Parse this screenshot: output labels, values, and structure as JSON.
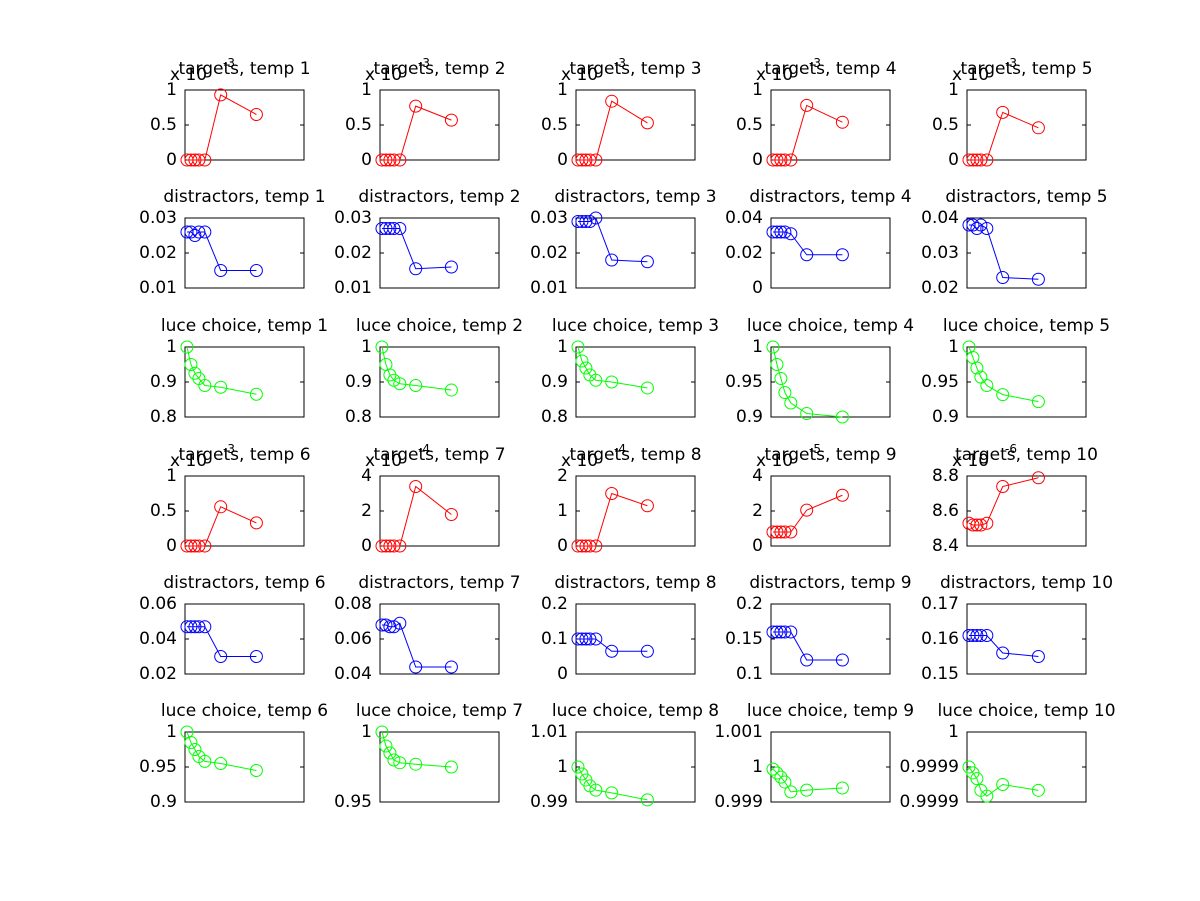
{
  "chart_data": [
    {
      "type": "line",
      "title": "targets, temp 1",
      "multiplier": {
        "base": "x 10",
        "exponent": "-3"
      },
      "x": [
        1,
        3,
        5,
        7,
        10,
        18,
        36
      ],
      "values": [
        0,
        0,
        0,
        0,
        0,
        0.93,
        0.65
      ],
      "color": "#ff0000",
      "marker": "o",
      "xlim": [
        0,
        60
      ],
      "ylim": [
        0,
        1
      ],
      "yticks": [
        0,
        0.5,
        1
      ]
    },
    {
      "type": "line",
      "title": "targets, temp 2",
      "multiplier": {
        "base": "x 10",
        "exponent": "-3"
      },
      "x": [
        1,
        3,
        5,
        7,
        10,
        18,
        36
      ],
      "values": [
        0,
        0,
        0,
        0,
        0,
        0.77,
        0.57
      ],
      "color": "#ff0000",
      "marker": "o",
      "xlim": [
        0,
        60
      ],
      "ylim": [
        0,
        1
      ],
      "yticks": [
        0,
        0.5,
        1
      ]
    },
    {
      "type": "line",
      "title": "targets, temp 3",
      "multiplier": {
        "base": "x 10",
        "exponent": "-3"
      },
      "x": [
        1,
        3,
        5,
        7,
        10,
        18,
        36
      ],
      "values": [
        0,
        0,
        0,
        0,
        0,
        0.84,
        0.53
      ],
      "color": "#ff0000",
      "marker": "o",
      "xlim": [
        0,
        60
      ],
      "ylim": [
        0,
        1
      ],
      "yticks": [
        0,
        0.5,
        1
      ]
    },
    {
      "type": "line",
      "title": "targets, temp 4",
      "multiplier": {
        "base": "x 10",
        "exponent": "-3"
      },
      "x": [
        1,
        3,
        5,
        7,
        10,
        18,
        36
      ],
      "values": [
        0,
        0,
        0,
        0,
        0,
        0.78,
        0.54
      ],
      "color": "#ff0000",
      "marker": "o",
      "xlim": [
        0,
        60
      ],
      "ylim": [
        0,
        1
      ],
      "yticks": [
        0,
        0.5,
        1
      ]
    },
    {
      "type": "line",
      "title": "targets, temp 5",
      "multiplier": {
        "base": "x 10",
        "exponent": "-3"
      },
      "x": [
        1,
        3,
        5,
        7,
        10,
        18,
        36
      ],
      "values": [
        0,
        0,
        0,
        0,
        0,
        0.68,
        0.46
      ],
      "color": "#ff0000",
      "marker": "o",
      "xlim": [
        0,
        60
      ],
      "ylim": [
        0,
        1
      ],
      "yticks": [
        0,
        0.5,
        1
      ]
    },
    {
      "type": "line",
      "title": "distractors, temp 1",
      "x": [
        1,
        3,
        5,
        7,
        10,
        18,
        36
      ],
      "values": [
        0.026,
        0.026,
        0.025,
        0.026,
        0.026,
        0.015,
        0.015
      ],
      "color": "#0000ff",
      "marker": "o",
      "xlim": [
        0,
        60
      ],
      "ylim": [
        0.01,
        0.03
      ],
      "yticks": [
        0.01,
        0.02,
        0.03
      ]
    },
    {
      "type": "line",
      "title": "distractors, temp 2",
      "x": [
        1,
        3,
        5,
        7,
        10,
        18,
        36
      ],
      "values": [
        0.027,
        0.027,
        0.027,
        0.027,
        0.027,
        0.0155,
        0.016
      ],
      "color": "#0000ff",
      "marker": "o",
      "xlim": [
        0,
        60
      ],
      "ylim": [
        0.01,
        0.03
      ],
      "yticks": [
        0.01,
        0.02,
        0.03
      ]
    },
    {
      "type": "line",
      "title": "distractors, temp 3",
      "x": [
        1,
        3,
        5,
        7,
        10,
        18,
        36
      ],
      "values": [
        0.029,
        0.029,
        0.029,
        0.029,
        0.03,
        0.018,
        0.0175
      ],
      "color": "#0000ff",
      "marker": "o",
      "xlim": [
        0,
        60
      ],
      "ylim": [
        0.01,
        0.03
      ],
      "yticks": [
        0.01,
        0.02,
        0.03
      ]
    },
    {
      "type": "line",
      "title": "distractors, temp 4",
      "x": [
        1,
        3,
        5,
        7,
        10,
        18,
        36
      ],
      "values": [
        0.032,
        0.032,
        0.032,
        0.032,
        0.031,
        0.019,
        0.019
      ],
      "color": "#0000ff",
      "marker": "o",
      "xlim": [
        0,
        60
      ],
      "ylim": [
        0,
        0.04
      ],
      "yticks": [
        0,
        0.02,
        0.04
      ]
    },
    {
      "type": "line",
      "title": "distractors, temp 5",
      "x": [
        1,
        3,
        5,
        7,
        10,
        18,
        36
      ],
      "values": [
        0.038,
        0.038,
        0.037,
        0.038,
        0.037,
        0.023,
        0.0225
      ],
      "color": "#0000ff",
      "marker": "o",
      "xlim": [
        0,
        60
      ],
      "ylim": [
        0.02,
        0.04
      ],
      "yticks": [
        0.02,
        0.03,
        0.04
      ]
    },
    {
      "type": "line",
      "title": "luce choice, temp 1",
      "x": [
        1,
        3,
        5,
        7,
        10,
        18,
        36
      ],
      "values": [
        1,
        0.95,
        0.925,
        0.91,
        0.89,
        0.885,
        0.865
      ],
      "color": "#00ff00",
      "marker": "o",
      "xlim": [
        0,
        60
      ],
      "ylim": [
        0.8,
        1
      ],
      "yticks": [
        0.8,
        0.9,
        1
      ]
    },
    {
      "type": "line",
      "title": "luce choice, temp 2",
      "x": [
        1,
        3,
        5,
        7,
        10,
        18,
        36
      ],
      "values": [
        1,
        0.95,
        0.92,
        0.905,
        0.895,
        0.89,
        0.877
      ],
      "color": "#00ff00",
      "marker": "o",
      "xlim": [
        0,
        60
      ],
      "ylim": [
        0.8,
        1
      ],
      "yticks": [
        0.8,
        0.9,
        1
      ]
    },
    {
      "type": "line",
      "title": "luce choice, temp 3",
      "x": [
        1,
        3,
        5,
        7,
        10,
        18,
        36
      ],
      "values": [
        1,
        0.96,
        0.94,
        0.92,
        0.905,
        0.9,
        0.883
      ],
      "color": "#00ff00",
      "marker": "o",
      "xlim": [
        0,
        60
      ],
      "ylim": [
        0.8,
        1
      ],
      "yticks": [
        0.8,
        0.9,
        1
      ]
    },
    {
      "type": "line",
      "title": "luce choice, temp 4",
      "x": [
        1,
        3,
        5,
        7,
        10,
        18,
        36
      ],
      "values": [
        1,
        0.975,
        0.955,
        0.935,
        0.92,
        0.905,
        0.9
      ],
      "color": "#00ff00",
      "marker": "o",
      "xlim": [
        0,
        60
      ],
      "ylim": [
        0.9,
        1
      ],
      "yticks": [
        0.9,
        0.95,
        1
      ]
    },
    {
      "type": "line",
      "title": "luce choice, temp 5",
      "x": [
        1,
        3,
        5,
        7,
        10,
        18,
        36
      ],
      "values": [
        1,
        0.985,
        0.97,
        0.957,
        0.945,
        0.932,
        0.922
      ],
      "color": "#00ff00",
      "marker": "o",
      "xlim": [
        0,
        60
      ],
      "ylim": [
        0.9,
        1
      ],
      "yticks": [
        0.9,
        0.95,
        1
      ]
    },
    {
      "type": "line",
      "title": "targets, temp 6",
      "multiplier": {
        "base": "x 10",
        "exponent": "-3"
      },
      "x": [
        1,
        3,
        5,
        7,
        10,
        18,
        36
      ],
      "values": [
        0,
        0,
        0,
        0,
        0,
        0.56,
        0.33
      ],
      "color": "#ff0000",
      "marker": "o",
      "xlim": [
        0,
        60
      ],
      "ylim": [
        0,
        1
      ],
      "yticks": [
        0,
        0.5,
        1
      ]
    },
    {
      "type": "line",
      "title": "targets, temp 7",
      "multiplier": {
        "base": "x 10",
        "exponent": "-4"
      },
      "x": [
        1,
        3,
        5,
        7,
        10,
        18,
        36
      ],
      "values": [
        0,
        0,
        0,
        0,
        0,
        3.4,
        1.8
      ],
      "color": "#ff0000",
      "marker": "o",
      "xlim": [
        0,
        60
      ],
      "ylim": [
        0,
        4
      ],
      "yticks": [
        0,
        2,
        4
      ]
    },
    {
      "type": "line",
      "title": "targets, temp 8",
      "multiplier": {
        "base": "x 10",
        "exponent": "-4"
      },
      "x": [
        1,
        3,
        5,
        7,
        10,
        18,
        36
      ],
      "values": [
        0,
        0,
        0,
        0,
        0,
        1.5,
        1.15
      ],
      "color": "#ff0000",
      "marker": "o",
      "xlim": [
        0,
        60
      ],
      "ylim": [
        0,
        2
      ],
      "yticks": [
        0,
        1,
        2
      ]
    },
    {
      "type": "line",
      "title": "targets, temp 9",
      "multiplier": {
        "base": "x 10",
        "exponent": "-5"
      },
      "x": [
        1,
        3,
        5,
        7,
        10,
        18,
        36
      ],
      "values": [
        0.8,
        0.8,
        0.8,
        0.8,
        0.8,
        2.05,
        2.9
      ],
      "color": "#ff0000",
      "marker": "o",
      "xlim": [
        0,
        60
      ],
      "ylim": [
        0,
        4
      ],
      "yticks": [
        0,
        2,
        4
      ]
    },
    {
      "type": "line",
      "title": "targets, temp 10",
      "multiplier": {
        "base": "x 10",
        "exponent": "-6"
      },
      "x": [
        1,
        3,
        5,
        7,
        10,
        18,
        36
      ],
      "values": [
        8.53,
        8.52,
        8.52,
        8.52,
        8.53,
        8.74,
        8.79
      ],
      "color": "#ff0000",
      "marker": "o",
      "xlim": [
        0,
        60
      ],
      "ylim": [
        8.4,
        8.8
      ],
      "yticks": [
        8.4,
        8.6,
        8.8
      ]
    },
    {
      "type": "line",
      "title": "distractors, temp 6",
      "x": [
        1,
        3,
        5,
        7,
        10,
        18,
        36
      ],
      "values": [
        0.047,
        0.047,
        0.047,
        0.047,
        0.047,
        0.03,
        0.03
      ],
      "color": "#0000ff",
      "marker": "o",
      "xlim": [
        0,
        60
      ],
      "ylim": [
        0.02,
        0.06
      ],
      "yticks": [
        0.02,
        0.04,
        0.06
      ]
    },
    {
      "type": "line",
      "title": "distractors, temp 7",
      "x": [
        1,
        3,
        5,
        7,
        10,
        18,
        36
      ],
      "values": [
        0.068,
        0.068,
        0.067,
        0.067,
        0.069,
        0.044,
        0.044
      ],
      "color": "#0000ff",
      "marker": "o",
      "xlim": [
        0,
        60
      ],
      "ylim": [
        0.04,
        0.08
      ],
      "yticks": [
        0.04,
        0.06,
        0.08
      ]
    },
    {
      "type": "line",
      "title": "distractors, temp 8",
      "x": [
        1,
        3,
        5,
        7,
        10,
        18,
        36
      ],
      "values": [
        0.1,
        0.1,
        0.1,
        0.1,
        0.1,
        0.065,
        0.065
      ],
      "color": "#0000ff",
      "marker": "o",
      "xlim": [
        0,
        60
      ],
      "ylim": [
        0,
        0.2
      ],
      "yticks": [
        0,
        0.1,
        0.2
      ]
    },
    {
      "type": "line",
      "title": "distractors, temp 9",
      "x": [
        1,
        3,
        5,
        7,
        10,
        18,
        36
      ],
      "values": [
        0.16,
        0.16,
        0.16,
        0.16,
        0.16,
        0.12,
        0.12
      ],
      "color": "#0000ff",
      "marker": "o",
      "xlim": [
        0,
        60
      ],
      "ylim": [
        0.1,
        0.2
      ],
      "yticks": [
        0.1,
        0.15,
        0.2
      ]
    },
    {
      "type": "line",
      "title": "distractors, temp 10",
      "x": [
        1,
        3,
        5,
        7,
        10,
        18,
        36
      ],
      "values": [
        0.161,
        0.161,
        0.161,
        0.161,
        0.161,
        0.156,
        0.155
      ],
      "color": "#0000ff",
      "marker": "o",
      "xlim": [
        0,
        60
      ],
      "ylim": [
        0.15,
        0.17
      ],
      "yticks": [
        0.15,
        0.16,
        0.17
      ]
    },
    {
      "type": "line",
      "title": "luce choice, temp 6",
      "x": [
        1,
        3,
        5,
        7,
        10,
        18,
        36
      ],
      "values": [
        1,
        0.985,
        0.975,
        0.965,
        0.958,
        0.955,
        0.945
      ],
      "color": "#00ff00",
      "marker": "o",
      "xlim": [
        0,
        60
      ],
      "ylim": [
        0.9,
        1
      ],
      "yticks": [
        0.9,
        0.95,
        1
      ]
    },
    {
      "type": "line",
      "title": "luce choice, temp 7",
      "x": [
        1,
        3,
        5,
        7,
        10,
        18,
        36
      ],
      "values": [
        1,
        0.99,
        0.985,
        0.98,
        0.978,
        0.977,
        0.975
      ],
      "color": "#00ff00",
      "marker": "o",
      "xlim": [
        0,
        60
      ],
      "ylim": [
        0.95,
        1
      ],
      "yticks": [
        0.95,
        1
      ]
    },
    {
      "type": "line",
      "title": "luce choice, temp 8",
      "x": [
        1,
        3,
        5,
        7,
        10,
        18,
        36
      ],
      "values": [
        1,
        0.998,
        0.9963,
        0.9946,
        0.9934,
        0.9926,
        0.9906
      ],
      "color": "#00ff00",
      "marker": "o",
      "xlim": [
        0,
        60
      ],
      "ylim": [
        0.99,
        1.01
      ],
      "yticks": [
        0.99,
        1,
        1.01
      ]
    },
    {
      "type": "line",
      "title": "luce choice, temp 9",
      "x": [
        1,
        3,
        5,
        7,
        10,
        18,
        36
      ],
      "values": [
        0.99994,
        0.99983,
        0.99971,
        0.99957,
        0.99929,
        0.99934,
        0.9994
      ],
      "color": "#00ff00",
      "marker": "o",
      "xlim": [
        0,
        60
      ],
      "ylim": [
        0.999,
        1.001
      ],
      "yticks": [
        0.999,
        1,
        1.001
      ]
    },
    {
      "type": "line",
      "title": "luce choice, temp 10",
      "x": [
        1,
        3,
        5,
        7,
        10,
        18,
        36
      ],
      "values": [
        0.99994,
        0.99993,
        0.99992,
        0.9999,
        0.99989,
        0.99991,
        0.9999
      ],
      "color": "#00ff00",
      "marker": "o",
      "xlim": [
        0,
        60
      ],
      "ylim": [
        0.99988,
        1
      ],
      "yticks": [
        {
          "value": 0.99988,
          "label": "0.9999"
        },
        {
          "value": 0.99994,
          "label": "0.9999"
        },
        1
      ]
    }
  ]
}
